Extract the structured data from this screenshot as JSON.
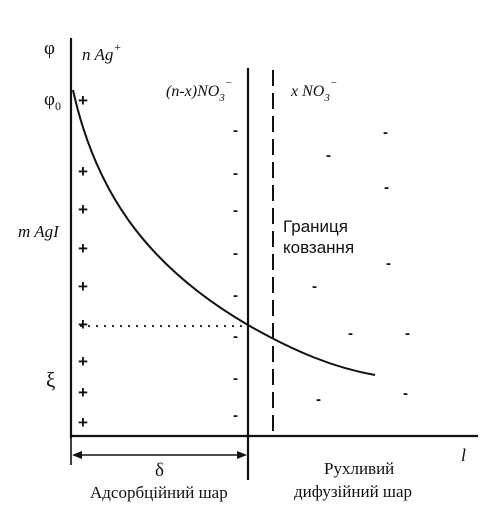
{
  "axis": {
    "potential_symbol": "φ",
    "potential_zero": "φ",
    "potential_zero_sub": "0",
    "zeta": "ξ",
    "distance": "l"
  },
  "labels": {
    "nag": "n Ag",
    "nag_sup": "+",
    "magi": "m AgI",
    "nx_no3": "(n-x)NO",
    "nx_no3_sub": "3",
    "nx_no3_sup": "−",
    "x_no3": "x NO",
    "x_no3_sub": "3",
    "x_no3_sup": "−",
    "slip_line1": "Границя",
    "slip_line2": "ковзання",
    "delta": "δ",
    "adsorption_layer": "Адсорбційний шар",
    "diffuse_line1": "Рухливий",
    "diffuse_line2": "дифузійний шар"
  },
  "charges": {
    "plus": "+",
    "minus": "-"
  }
}
